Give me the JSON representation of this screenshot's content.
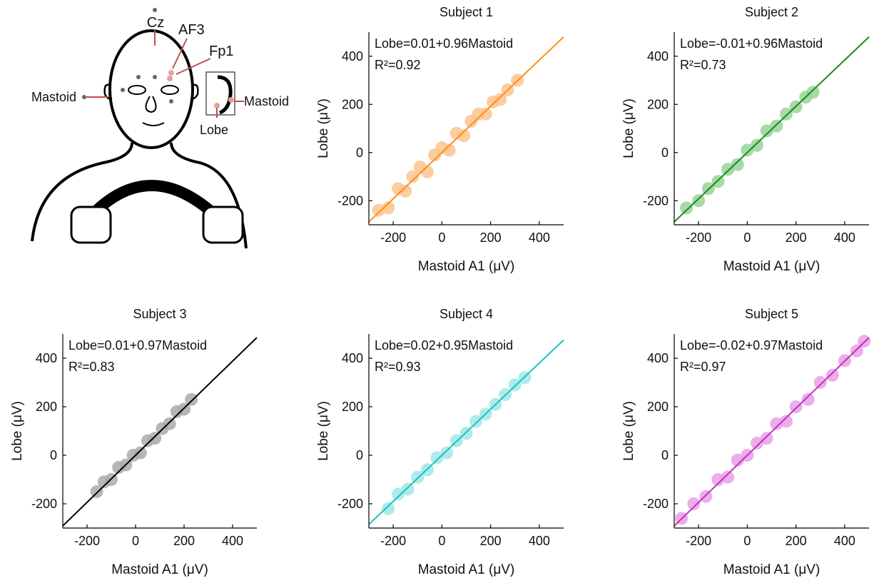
{
  "diagram": {
    "labels": [
      "Cz",
      "AF3",
      "Fp1",
      "Mastoid",
      "Mastoid",
      "Lobe"
    ]
  },
  "chart_data": [
    {
      "type": "scatter",
      "title": "Subject 1",
      "annotation": "Lobe=0.01+0.96Mastoid",
      "r2": "R²=0.92",
      "intercept": 0.01,
      "slope": 0.96,
      "x_label": "Mastoid A1 (μV)",
      "y_label": "Lobe (μV)",
      "line_color": "#ff8c1a",
      "color": "#fcc48e",
      "x": [
        -260,
        -220,
        -180,
        -150,
        -120,
        -90,
        -60,
        -30,
        0,
        30,
        60,
        90,
        120,
        150,
        180,
        210,
        240,
        270,
        310
      ],
      "values": [
        -240,
        -230,
        -150,
        -160,
        -100,
        -60,
        -80,
        -10,
        20,
        10,
        80,
        70,
        130,
        160,
        160,
        210,
        220,
        260,
        300
      ],
      "xlim": [
        -300,
        500
      ],
      "ylim": [
        -300,
        500
      ],
      "xticks": [
        -200,
        0,
        200,
        400
      ],
      "yticks": [
        -200,
        0,
        200,
        400
      ]
    },
    {
      "type": "scatter",
      "title": "Subject 2",
      "annotation": "Lobe=-0.01+0.96Mastoid",
      "r2": "R²=0.73",
      "intercept": -0.01,
      "slope": 0.96,
      "x_label": "Mastoid A1 (μV)",
      "y_label": "Lobe (μV)",
      "line_color": "#1a8a1a",
      "color": "#98d498",
      "x": [
        -250,
        -200,
        -160,
        -120,
        -80,
        -40,
        0,
        40,
        80,
        120,
        160,
        200,
        240,
        270
      ],
      "values": [
        -230,
        -200,
        -150,
        -120,
        -70,
        -50,
        10,
        30,
        90,
        110,
        160,
        190,
        230,
        250
      ],
      "xlim": [
        -300,
        500
      ],
      "ylim": [
        -300,
        500
      ],
      "xticks": [
        -200,
        0,
        200,
        400
      ],
      "yticks": [
        -200,
        0,
        200,
        400
      ]
    },
    {
      "type": "scatter",
      "title": "Subject 3",
      "annotation": "Lobe=0.01+0.97Mastoid",
      "r2": "R²=0.83",
      "intercept": 0.01,
      "slope": 0.97,
      "x_label": "Mastoid A1 (μV)",
      "y_label": "Lobe (μV)",
      "line_color": "#000000",
      "color": "#aaaaaa",
      "x": [
        -160,
        -130,
        -100,
        -70,
        -40,
        -10,
        20,
        50,
        80,
        110,
        140,
        170,
        200,
        230
      ],
      "values": [
        -150,
        -110,
        -100,
        -50,
        -40,
        0,
        10,
        60,
        70,
        110,
        130,
        180,
        190,
        230
      ],
      "xlim": [
        -300,
        500
      ],
      "ylim": [
        -300,
        500
      ],
      "xticks": [
        -200,
        0,
        200,
        400
      ],
      "yticks": [
        -200,
        0,
        200,
        400
      ]
    },
    {
      "type": "scatter",
      "title": "Subject 4",
      "annotation": "Lobe=0.02+0.95Mastoid",
      "r2": "R²=0.93",
      "intercept": 0.02,
      "slope": 0.95,
      "x_label": "Mastoid A1 (μV)",
      "y_label": "Lobe (μV)",
      "line_color": "#20c0c0",
      "color": "#a0e8e8",
      "x": [
        -220,
        -180,
        -140,
        -100,
        -60,
        -20,
        20,
        60,
        100,
        140,
        180,
        220,
        260,
        300,
        340
      ],
      "values": [
        -220,
        -160,
        -140,
        -90,
        -60,
        -10,
        10,
        60,
        90,
        140,
        170,
        210,
        250,
        290,
        320
      ],
      "xlim": [
        -300,
        500
      ],
      "ylim": [
        -300,
        500
      ],
      "xticks": [
        -200,
        0,
        200,
        400
      ],
      "yticks": [
        -200,
        0,
        200,
        400
      ]
    },
    {
      "type": "scatter",
      "title": "Subject 5",
      "annotation": "Lobe=-0.02+0.97Mastoid",
      "r2": "R²=0.97",
      "intercept": -0.02,
      "slope": 0.97,
      "x_label": "Mastoid A1 (μV)",
      "y_label": "Lobe (μV)",
      "line_color": "#c030c0",
      "color": "#e8a0e8",
      "x": [
        -270,
        -220,
        -170,
        -120,
        -80,
        -40,
        0,
        40,
        80,
        120,
        160,
        200,
        250,
        300,
        350,
        400,
        450,
        480
      ],
      "values": [
        -260,
        -200,
        -170,
        -100,
        -90,
        -20,
        0,
        50,
        70,
        130,
        140,
        200,
        230,
        300,
        330,
        390,
        430,
        470
      ],
      "xlim": [
        -300,
        500
      ],
      "ylim": [
        -300,
        500
      ],
      "xticks": [
        -200,
        0,
        200,
        400
      ],
      "yticks": [
        -200,
        0,
        200,
        400
      ]
    }
  ]
}
